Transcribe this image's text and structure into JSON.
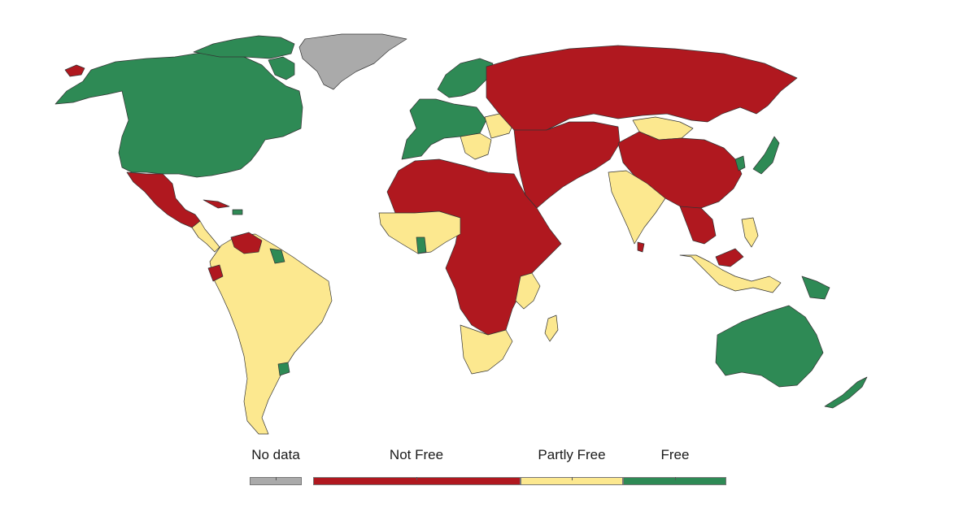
{
  "map": {
    "colors": {
      "no_data": "#aaaaaa",
      "not_free": "#b0181f",
      "partly_free": "#fce88f",
      "free": "#2e8a55"
    },
    "legend": [
      {
        "key": "no_data",
        "label": "No data",
        "color": "#aaaaaa"
      },
      {
        "key": "not_free",
        "label": "Not Free",
        "color": "#b0181f"
      },
      {
        "key": "partly_free",
        "label": "Partly Free",
        "color": "#fce88f"
      },
      {
        "key": "free",
        "label": "Free",
        "color": "#2e8a55"
      }
    ]
  }
}
